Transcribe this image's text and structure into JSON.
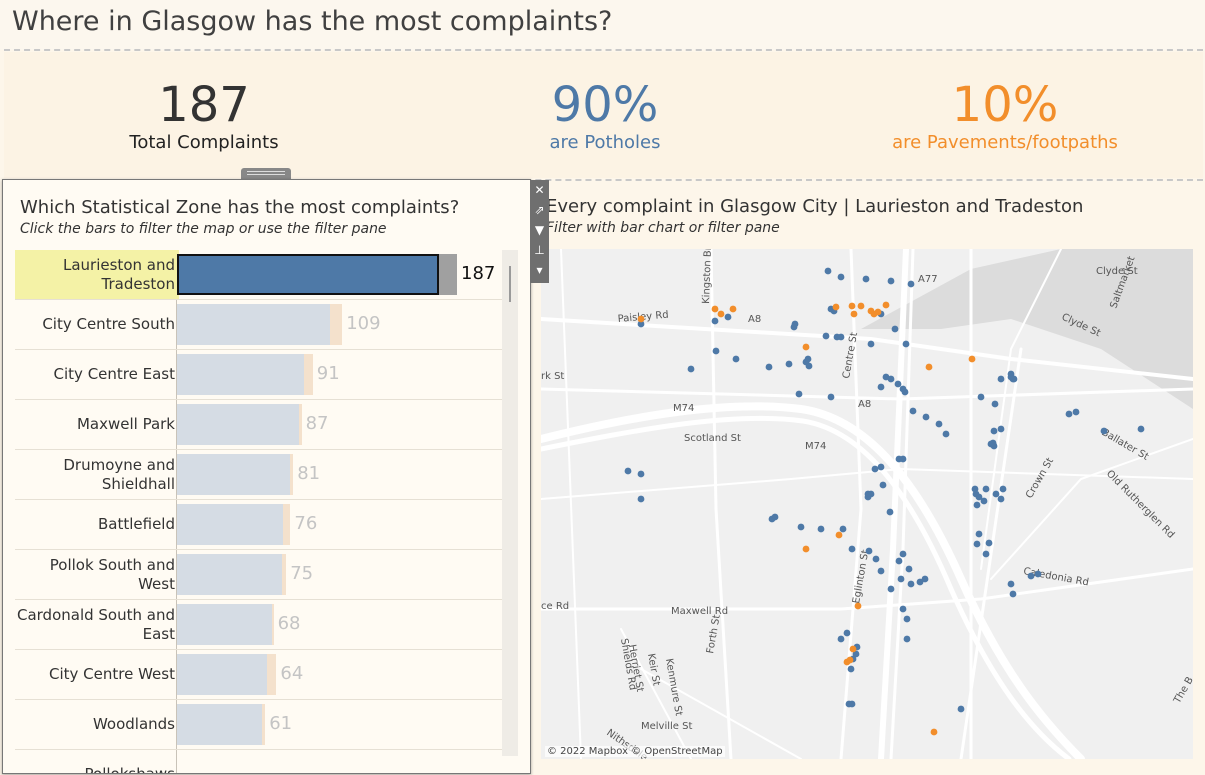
{
  "header": {
    "title": "Where in Glasgow has the most complaints?"
  },
  "kpis": {
    "total": {
      "value": "187",
      "label": "Total Complaints",
      "color": "#333333"
    },
    "potholes": {
      "value": "90%",
      "label": "are Potholes",
      "color": "#4e79a7"
    },
    "pavements": {
      "value": "10%",
      "label": "are Pavements/footpaths",
      "color": "#f28e2b"
    }
  },
  "bar_panel": {
    "title": "Which Statistical Zone has the most complaints?",
    "subtitle": "Click the bars to filter the map or use the filter pane"
  },
  "map_panel": {
    "title": "Every complaint in Glasgow City | Laurieston and Tradeston",
    "subtitle": "Filter with bar chart or filter pane",
    "attribution": "© 2022 Mapbox © OpenStreetMap",
    "street_labels": [
      "Paisley Rd",
      "A8",
      "Kingston Br",
      "A77",
      "Clyde St",
      "Saltmarket",
      "Clyde St",
      "Scotland St",
      "M74",
      "M74",
      "A8",
      "Centre St",
      "Ballater St",
      "Old Rutherglen Rd",
      "Crown St",
      "Caledonia Rd",
      "Maxwell Rd",
      "Eglinton St",
      "Shields Rd",
      "Herriet St",
      "Keir St",
      "Kenmure St",
      "Forth St",
      "Melville St",
      "Nithsdale",
      "The B",
      "rk St",
      "ce Rd"
    ]
  },
  "chart_data": {
    "type": "bar",
    "categories": [
      "Laurieston and Tradeston",
      "City Centre South",
      "City Centre East",
      "Maxwell Park",
      "Drumoyne and Shieldhall",
      "Battlefield",
      "Pollok South and West",
      "Cardonald South and East",
      "City Centre West",
      "Woodlands",
      "Pollokshaws"
    ],
    "values": [
      187,
      109,
      91,
      87,
      81,
      76,
      75,
      68,
      64,
      61,
      null
    ],
    "reference_values": [
      200,
      118,
      97,
      89,
      83,
      81,
      78,
      69,
      71,
      63,
      null
    ],
    "selected": "Laurieston and Tradeston",
    "xlim": [
      0,
      200
    ],
    "colors": {
      "selected": "#4e79a7",
      "selected_ref": "#a0a0a0",
      "other": "#d5dce4",
      "other_ref": "#f4e1cc",
      "value_muted": "#c4c4c4",
      "value_selected": "#111111"
    }
  },
  "map_points": {
    "potholes_color": "#4e79a7",
    "pavements_color": "#f28e2b"
  }
}
